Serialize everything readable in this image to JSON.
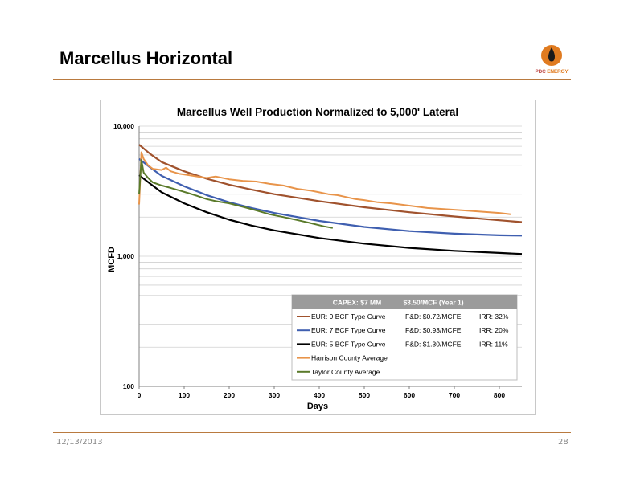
{
  "slide": {
    "title": "Marcellus Horizontal",
    "logo_text_a": "PDC",
    "logo_text_b": "ENERGY",
    "footer_date": "12/13/2013",
    "footer_page": "28"
  },
  "colors": {
    "accent": "#b97a3f",
    "eur9": "#a0522d",
    "eur7": "#3f5fb0",
    "eur5": "#000000",
    "harrison": "#e8944a",
    "taylor": "#5a7a2a",
    "legend_header_bg": "#9b9b9b"
  },
  "chart_data": {
    "type": "line",
    "title": "Marcellus Well Production Normalized to 5,000' Lateral",
    "xlabel": "Days",
    "ylabel": "MCFD",
    "xlim": [
      0,
      850
    ],
    "xticks": [
      0,
      100,
      200,
      300,
      400,
      500,
      600,
      700,
      800
    ],
    "ylim": [
      100,
      10000
    ],
    "yscale": "log",
    "yticks": [
      100,
      1000,
      10000
    ],
    "ytick_labels": [
      "100",
      "1,000",
      "10,000"
    ],
    "grid": "horizontal",
    "legend_placement": "bottom-right",
    "legend": {
      "header_capex": "CAPEX: $7 MM",
      "header_price": "$3.50/MCF (Year 1)",
      "entries": [
        {
          "series": "EUR: 9 BCF Type Curve",
          "fd": "F&D: $0.72/MCFE",
          "irr": "IRR: 32%"
        },
        {
          "series": "EUR: 7 BCF Type Curve",
          "fd": "F&D: $0.93/MCFE",
          "irr": "IRR: 20%"
        },
        {
          "series": "EUR: 5 BCF Type Curve",
          "fd": "F&D: $1.30/MCFE",
          "irr": "IRR: 11%"
        },
        {
          "series": "Harrison County Average",
          "fd": "",
          "irr": ""
        },
        {
          "series": "Taylor County Average",
          "fd": "",
          "irr": ""
        }
      ]
    },
    "series": [
      {
        "name": "EUR: 9 BCF Type Curve",
        "color": "#a0522d",
        "x": [
          0,
          25,
          50,
          100,
          150,
          200,
          250,
          300,
          400,
          500,
          600,
          700,
          800,
          850
        ],
        "y": [
          7200,
          6100,
          5300,
          4500,
          3950,
          3550,
          3250,
          3000,
          2650,
          2380,
          2180,
          2020,
          1890,
          1830
        ]
      },
      {
        "name": "EUR: 7 BCF Type Curve",
        "color": "#3f5fb0",
        "x": [
          0,
          25,
          50,
          100,
          150,
          200,
          250,
          300,
          400,
          500,
          600,
          700,
          800,
          850
        ],
        "y": [
          5600,
          4800,
          4150,
          3450,
          2950,
          2600,
          2350,
          2150,
          1870,
          1680,
          1560,
          1490,
          1450,
          1440
        ]
      },
      {
        "name": "EUR: 5 BCF Type Curve",
        "color": "#000000",
        "x": [
          0,
          25,
          50,
          100,
          150,
          200,
          250,
          300,
          400,
          500,
          600,
          700,
          800,
          850
        ],
        "y": [
          4200,
          3600,
          3100,
          2550,
          2180,
          1910,
          1720,
          1580,
          1380,
          1250,
          1160,
          1100,
          1060,
          1040
        ]
      },
      {
        "name": "Harrison County Average",
        "color": "#e8944a",
        "x": [
          0,
          5,
          10,
          20,
          30,
          50,
          60,
          70,
          90,
          110,
          130,
          150,
          170,
          200,
          230,
          260,
          290,
          320,
          350,
          380,
          400,
          420,
          440,
          460,
          480,
          500,
          530,
          560,
          600,
          640,
          680,
          720,
          760,
          800,
          825
        ],
        "y": [
          2500,
          6300,
          5600,
          5000,
          4700,
          4600,
          4800,
          4500,
          4300,
          4200,
          4100,
          4000,
          4100,
          3900,
          3800,
          3750,
          3600,
          3500,
          3300,
          3200,
          3100,
          3000,
          2950,
          2850,
          2750,
          2700,
          2600,
          2550,
          2450,
          2350,
          2300,
          2250,
          2200,
          2150,
          2100
        ]
      },
      {
        "name": "Taylor County Average",
        "color": "#5a7a2a",
        "x": [
          0,
          5,
          10,
          20,
          30,
          50,
          70,
          90,
          110,
          130,
          150,
          170,
          200,
          230,
          260,
          290,
          320,
          350,
          380,
          410,
          430
        ],
        "y": [
          3000,
          5500,
          4400,
          4000,
          3700,
          3500,
          3350,
          3200,
          3050,
          2900,
          2750,
          2650,
          2550,
          2400,
          2250,
          2100,
          2000,
          1900,
          1800,
          1700,
          1650
        ]
      }
    ]
  }
}
